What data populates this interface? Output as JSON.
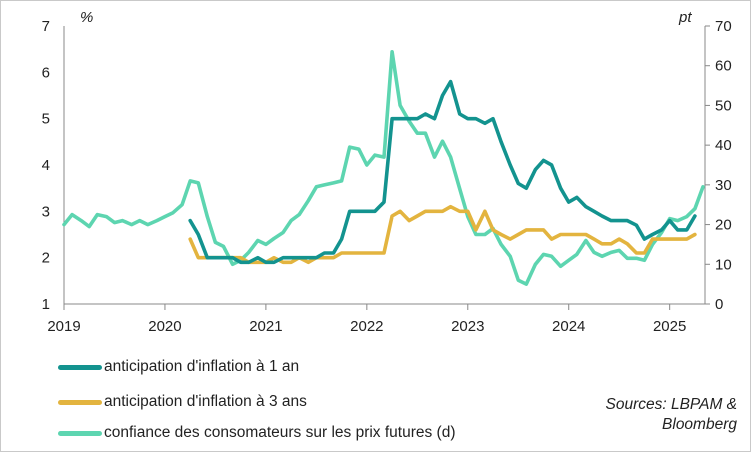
{
  "chart_data": {
    "type": "line",
    "left_axis": {
      "unit": "%",
      "min": 1,
      "max": 7,
      "ticks": [
        1,
        2,
        3,
        4,
        5,
        6,
        7
      ]
    },
    "right_axis": {
      "unit": "pt",
      "min": 0,
      "max": 70,
      "ticks": [
        0,
        10,
        20,
        30,
        40,
        50,
        60,
        70
      ]
    },
    "x_axis": {
      "min": 2019.0,
      "max": 2025.35,
      "ticks": [
        "2019",
        "2020",
        "2021",
        "2022",
        "2023",
        "2024",
        "2025"
      ]
    },
    "grid": false,
    "legend_position": "bottom-left",
    "series": [
      {
        "name": "anticipation d'inflation à 1 an",
        "axis": "left",
        "color": "#13938f",
        "x": [
          2020.25,
          2020.33,
          2020.42,
          2020.5,
          2020.58,
          2020.67,
          2020.75,
          2020.83,
          2020.92,
          2021.0,
          2021.08,
          2021.17,
          2021.25,
          2021.33,
          2021.42,
          2021.5,
          2021.58,
          2021.67,
          2021.75,
          2021.83,
          2021.92,
          2022.0,
          2022.08,
          2022.17,
          2022.25,
          2022.33,
          2022.42,
          2022.5,
          2022.58,
          2022.67,
          2022.75,
          2022.83,
          2022.92,
          2023.0,
          2023.08,
          2023.17,
          2023.25,
          2023.33,
          2023.42,
          2023.5,
          2023.58,
          2023.67,
          2023.75,
          2023.83,
          2023.92,
          2024.0,
          2024.08,
          2024.17,
          2024.25,
          2024.33,
          2024.42,
          2024.5,
          2024.58,
          2024.67,
          2024.75,
          2024.83,
          2024.92,
          2025.0,
          2025.08,
          2025.17,
          2025.25
        ],
        "values": [
          2.8,
          2.5,
          2.0,
          2.0,
          2.0,
          2.0,
          1.9,
          1.9,
          2.0,
          1.9,
          1.9,
          2.0,
          2.0,
          2.0,
          2.0,
          2.0,
          2.1,
          2.1,
          2.4,
          3.0,
          3.0,
          3.0,
          3.0,
          3.2,
          5.0,
          5.0,
          5.0,
          5.0,
          5.1,
          5.0,
          5.5,
          5.8,
          5.1,
          5.0,
          5.0,
          4.9,
          5.0,
          4.5,
          4.0,
          3.6,
          3.5,
          3.9,
          4.1,
          4.0,
          3.5,
          3.2,
          3.3,
          3.1,
          3.0,
          2.9,
          2.8,
          2.8,
          2.8,
          2.7,
          2.4,
          2.5,
          2.6,
          2.8,
          2.6,
          2.6,
          2.9
        ]
      },
      {
        "name": "anticipation d'inflation à 3 ans",
        "axis": "left",
        "color": "#e3b43f",
        "x": [
          2020.25,
          2020.33,
          2020.42,
          2020.5,
          2020.58,
          2020.67,
          2020.75,
          2020.83,
          2020.92,
          2021.0,
          2021.08,
          2021.17,
          2021.25,
          2021.33,
          2021.42,
          2021.5,
          2021.58,
          2021.67,
          2021.75,
          2021.83,
          2021.92,
          2022.0,
          2022.08,
          2022.17,
          2022.25,
          2022.33,
          2022.42,
          2022.5,
          2022.58,
          2022.67,
          2022.75,
          2022.83,
          2022.92,
          2023.0,
          2023.08,
          2023.17,
          2023.25,
          2023.33,
          2023.42,
          2023.5,
          2023.58,
          2023.67,
          2023.75,
          2023.83,
          2023.92,
          2024.0,
          2024.08,
          2024.17,
          2024.25,
          2024.33,
          2024.42,
          2024.5,
          2024.58,
          2024.67,
          2024.75,
          2024.83,
          2024.92,
          2025.0,
          2025.08,
          2025.17,
          2025.25
        ],
        "values": [
          2.4,
          2.0,
          2.0,
          2.0,
          2.0,
          2.0,
          2.0,
          1.9,
          1.9,
          1.9,
          2.0,
          1.9,
          1.9,
          2.0,
          1.9,
          2.0,
          2.0,
          2.0,
          2.1,
          2.1,
          2.1,
          2.1,
          2.1,
          2.1,
          2.9,
          3.0,
          2.8,
          2.9,
          3.0,
          3.0,
          3.0,
          3.1,
          3.0,
          3.0,
          2.6,
          3.0,
          2.6,
          2.5,
          2.4,
          2.5,
          2.6,
          2.6,
          2.6,
          2.4,
          2.5,
          2.5,
          2.5,
          2.5,
          2.4,
          2.3,
          2.3,
          2.4,
          2.3,
          2.1,
          2.1,
          2.4,
          2.4,
          2.4,
          2.4,
          2.4,
          2.5
        ]
      },
      {
        "name": "confiance des consomateurs sur les prix futures (d)",
        "axis": "right",
        "color": "#5dd5b0",
        "x": [
          2019.0,
          2019.08,
          2019.17,
          2019.25,
          2019.33,
          2019.42,
          2019.5,
          2019.58,
          2019.67,
          2019.75,
          2019.83,
          2019.92,
          2020.0,
          2020.08,
          2020.17,
          2020.25,
          2020.33,
          2020.42,
          2020.5,
          2020.58,
          2020.67,
          2020.75,
          2020.83,
          2020.92,
          2021.0,
          2021.08,
          2021.17,
          2021.25,
          2021.33,
          2021.42,
          2021.5,
          2021.58,
          2021.67,
          2021.75,
          2021.83,
          2021.92,
          2022.0,
          2022.08,
          2022.17,
          2022.25,
          2022.33,
          2022.42,
          2022.5,
          2022.58,
          2022.67,
          2022.75,
          2022.83,
          2022.92,
          2023.0,
          2023.08,
          2023.17,
          2023.25,
          2023.33,
          2023.42,
          2023.5,
          2023.58,
          2023.67,
          2023.75,
          2023.83,
          2023.92,
          2024.0,
          2024.08,
          2024.17,
          2024.25,
          2024.33,
          2024.42,
          2024.5,
          2024.58,
          2024.67,
          2024.75,
          2024.83,
          2024.92,
          2025.0,
          2025.08,
          2025.17,
          2025.25,
          2025.33
        ],
        "values": [
          20,
          22.5,
          21,
          19.5,
          22.5,
          22,
          20.5,
          21,
          20,
          21,
          20,
          21,
          22,
          23,
          25,
          31,
          30.5,
          22,
          15.5,
          14.5,
          10,
          11,
          13,
          16,
          15,
          16.5,
          18,
          21,
          22.5,
          26,
          29.5,
          30,
          30.5,
          31,
          39.5,
          39,
          35,
          37.5,
          37,
          63.5,
          50,
          46,
          43,
          43,
          37,
          41,
          37,
          29,
          22,
          17.5,
          17.5,
          19,
          15,
          12,
          6,
          5,
          10,
          12.5,
          12,
          9.5,
          11,
          12.5,
          16,
          13,
          12,
          13,
          13.5,
          11.5,
          11.5,
          11,
          15,
          18,
          21.5,
          21,
          22,
          24,
          29.5
        ]
      }
    ]
  },
  "legend": [
    {
      "label": "anticipation d'inflation à 1 an",
      "color": "#13938f"
    },
    {
      "label": "anticipation d'inflation à 3 ans",
      "color": "#e3b43f"
    },
    {
      "label": "confiance des consomateurs sur les prix futures (d)",
      "color": "#5dd5b0"
    }
  ],
  "sources": {
    "line1": "Sources: LBPAM &",
    "line2": "Bloomberg"
  }
}
